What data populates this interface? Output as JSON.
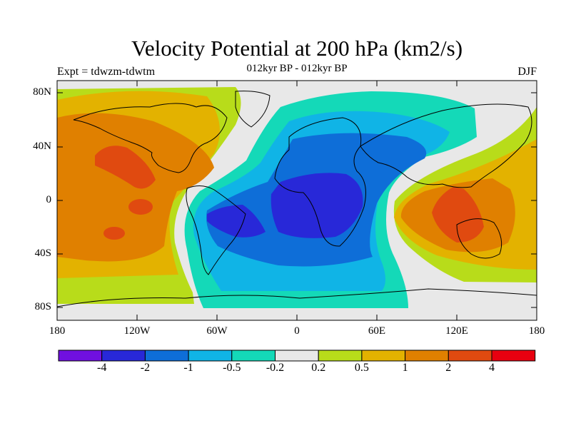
{
  "title": "Velocity Potential at 200 hPa (km2/s)",
  "left_label": "Expt = tdwzm-tdwtm",
  "center_label": "012kyr BP - 012kyr BP",
  "right_label": "DJF",
  "y_ticks": [
    "80N",
    "40N",
    "0",
    "40S",
    "80S"
  ],
  "x_ticks": [
    "180",
    "120W",
    "60W",
    "0",
    "60E",
    "120E",
    "180"
  ],
  "colorbar": {
    "colors": [
      "#7010e0",
      "#2828d8",
      "#0e6ed8",
      "#10b4e6",
      "#14d9b8",
      "#e8e8e8",
      "#b8dc1a",
      "#e3b200",
      "#e08000",
      "#e04a10",
      "#e80010"
    ],
    "labels": [
      "-4",
      "-2",
      "-1",
      "-0.5",
      "-0.2",
      "0.2",
      "0.5",
      "1",
      "2",
      "4"
    ]
  },
  "map_colors": {
    "neutral": "#e8e8e8",
    "neg1": "#14d9b8",
    "neg2": "#10b4e6",
    "neg3": "#0e6ed8",
    "neg4": "#2828d8",
    "pos1": "#b8dc1a",
    "pos2": "#e3b200",
    "pos3": "#e08000",
    "pos4": "#e04a10"
  }
}
